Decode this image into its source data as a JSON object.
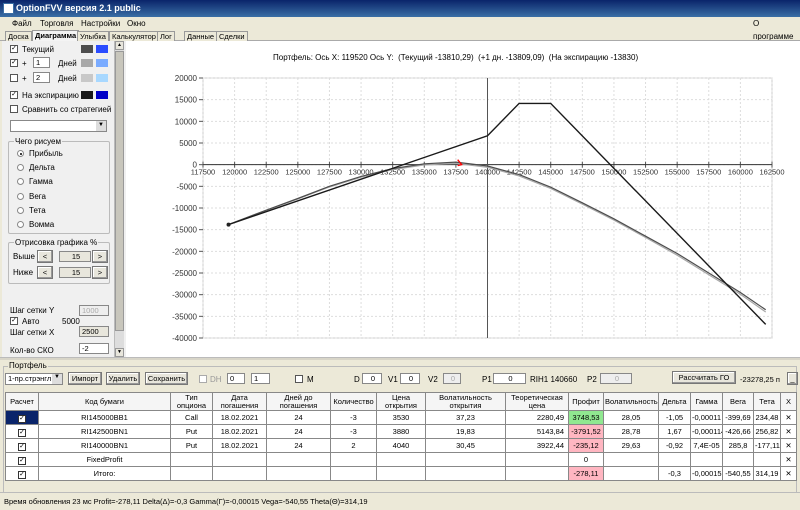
{
  "window": {
    "title": "OptionFVV версия 2.1 public"
  },
  "menu": {
    "items": [
      "Файл",
      "Торговля",
      "Настройки",
      "Окно"
    ],
    "about": "О программе"
  },
  "tabs": [
    "Доска",
    "Диаграмма",
    "Улыбка",
    "Калькулятор",
    "Лог",
    "Данные",
    "Сделки"
  ],
  "active_tab": "Диаграмма",
  "left": {
    "current_label": "Текущий",
    "current_checked": true,
    "current_colors": [
      "#4d4d4d",
      "#2a4cff"
    ],
    "plus_label": "+",
    "days_label": "Дней",
    "day1_value": "1",
    "day1_checked": true,
    "day1_colors": [
      "#a8a8a8",
      "#7aabff"
    ],
    "day2_value": "2",
    "day2_checked": false,
    "day2_colors": [
      "#c8c8c8",
      "#a8d8ff"
    ],
    "expiry_label": "На экспирацию",
    "expiry_checked": true,
    "expiry_colors": [
      "#1a1a1a",
      "#0000c8"
    ],
    "compare_label": "Сравнить со стратегией",
    "compare_checked": false,
    "what_group": "Чего рисуем",
    "what_options": [
      "Прибыль",
      "Дельта",
      "Гамма",
      "Вега",
      "Тета",
      "Вомма"
    ],
    "what_selected": "Прибыль",
    "draw_group": "Отрисовка графика %",
    "above_label": "Выше",
    "above_value": "15",
    "below_label": "Ниже",
    "below_value": "15",
    "prev": "<",
    "next": ">",
    "grid_y_label": "Шаг сетки Y",
    "grid_y_value": "1000",
    "auto_label": "Авто",
    "auto_checked": true,
    "auto_value": "5000",
    "grid_x_label": "Шаг сетки X",
    "grid_x_value": "2500",
    "sko_label": "Кол-во СКО",
    "sko_value": "-2"
  },
  "chart_header": "Портфель: Ось X: 119520 Ось Y:  (Текущий -13810,29)  (+1 дн. -13809,09)  (На экспирацию -13830)",
  "chart_data": {
    "type": "line",
    "xlim": [
      117500,
      162500
    ],
    "ylim": [
      -40000,
      20000
    ],
    "x_ticks": [
      117500,
      120000,
      122500,
      125000,
      127500,
      130000,
      132500,
      135000,
      137500,
      140000,
      142500,
      145000,
      147500,
      150000,
      152500,
      155000,
      157500,
      160000,
      162500
    ],
    "y_ticks": [
      20000,
      15000,
      10000,
      5000,
      0,
      -5000,
      -10000,
      -15000,
      -20000,
      -25000,
      -30000,
      -35000,
      -40000
    ],
    "grid": true,
    "cursor_x": 140000,
    "marker": {
      "x": 137800,
      "y": 0,
      "color": "#ff0000"
    },
    "series": [
      {
        "name": "На экспирацию",
        "color": "#1a1a1a",
        "points": [
          [
            119520,
            -13830
          ],
          [
            140000,
            6650
          ],
          [
            142500,
            14150
          ],
          [
            145000,
            14150
          ],
          [
            162000,
            -36850
          ]
        ]
      },
      {
        "name": "Текущий",
        "color": "#4d4d4d",
        "points": [
          [
            119520,
            -13810
          ],
          [
            122500,
            -10500
          ],
          [
            125000,
            -7800
          ],
          [
            127500,
            -5000
          ],
          [
            130000,
            -2700
          ],
          [
            132500,
            -900
          ],
          [
            135000,
            200
          ],
          [
            137500,
            600
          ],
          [
            140000,
            -300
          ],
          [
            142500,
            -2300
          ],
          [
            145000,
            -5200
          ],
          [
            147500,
            -8800
          ],
          [
            150000,
            -12500
          ],
          [
            152500,
            -16500
          ],
          [
            155000,
            -20500
          ],
          [
            157500,
            -25000
          ],
          [
            160000,
            -29500
          ],
          [
            162000,
            -33500
          ]
        ]
      },
      {
        "name": "+1 дн.",
        "color": "#a8a8a8",
        "points": [
          [
            119520,
            -13809
          ],
          [
            122500,
            -10550
          ],
          [
            125000,
            -7900
          ],
          [
            127500,
            -5150
          ],
          [
            130000,
            -2900
          ],
          [
            132500,
            -1150
          ],
          [
            135000,
            -50
          ],
          [
            137500,
            300
          ],
          [
            140000,
            -600
          ],
          [
            142500,
            -2600
          ],
          [
            145000,
            -5500
          ],
          [
            147500,
            -9100
          ],
          [
            150000,
            -12800
          ],
          [
            152500,
            -16800
          ],
          [
            155000,
            -20900
          ],
          [
            157500,
            -25400
          ],
          [
            160000,
            -29900
          ],
          [
            162000,
            -34000
          ]
        ]
      }
    ]
  },
  "portfolio": {
    "group_title": "Портфель",
    "strategy": "1-пр.стрэнгл",
    "import": "Импорт",
    "delete": "Удалить",
    "save": "Сохранить",
    "dh_label": "DH",
    "dh_checked": false,
    "spin1": "0",
    "spin2": "1",
    "m_label": "M",
    "m_checked": false,
    "d_label": "D",
    "d_value": "0",
    "v1_label": "V1",
    "v1_value": "0",
    "v2_label": "V2",
    "v2_value": "0",
    "p1_label": "P1",
    "p1_value": "0",
    "rih_label": "RIH1 140660",
    "p2_label": "P2",
    "p2_value": "0",
    "calc_go": "Рассчитать ГО",
    "go_value": "-23278,25 п",
    "min_btn": "_",
    "columns": [
      "Расчет",
      "Код бумаги",
      "Тип опциона",
      "Дата погашения",
      "Дней до погашения",
      "Количество",
      "Цена открытия",
      "Волатильность открытия",
      "Теоретическая цена",
      "Профит",
      "Волатильность",
      "Дельта",
      "Гамма",
      "Вега",
      "Тета",
      "X"
    ],
    "rows": [
      {
        "calc": true,
        "code": "RI145000BB1",
        "type": "Call",
        "date": "18.02.2021",
        "days": "24",
        "qty": "-3",
        "price": "3530",
        "vol_open": "37,23",
        "theo": "2280,49",
        "profit": "3748,53",
        "profit_sign": "pos",
        "vol": "28,05",
        "delta": "-1,05",
        "gamma": "-0,00011",
        "vega": "-399,69",
        "theta": "234,48",
        "x": "✕"
      },
      {
        "calc": true,
        "code": "RI142500BN1",
        "type": "Put",
        "date": "18.02.2021",
        "days": "24",
        "qty": "-3",
        "price": "3880",
        "vol_open": "19,83",
        "theo": "5143,84",
        "profit": "-3791,52",
        "profit_sign": "neg",
        "vol": "28,78",
        "delta": "1,67",
        "gamma": "-0,000114",
        "vega": "-426,66",
        "theta": "256,82",
        "x": "✕"
      },
      {
        "calc": true,
        "code": "RI140000BN1",
        "type": "Put",
        "date": "18.02.2021",
        "days": "24",
        "qty": "2",
        "price": "4040",
        "vol_open": "30,45",
        "theo": "3922,44",
        "profit": "-235,12",
        "profit_sign": "neg",
        "vol": "29,63",
        "delta": "-0,92",
        "gamma": "7,4E-05",
        "vega": "285,8",
        "theta": "-177,11",
        "x": "✕"
      },
      {
        "calc": true,
        "code": "FixedProfit",
        "type": "",
        "date": "",
        "days": "",
        "qty": "",
        "price": "",
        "vol_open": "",
        "theo": "",
        "profit": "0",
        "profit_sign": "",
        "vol": "",
        "delta": "",
        "gamma": "",
        "vega": "",
        "theta": "",
        "x": "✕"
      },
      {
        "calc": true,
        "code": "Итого:",
        "type": "",
        "date": "",
        "days": "",
        "qty": "",
        "price": "",
        "vol_open": "",
        "theo": "",
        "profit": "-278,11",
        "profit_sign": "neg",
        "vol": "",
        "delta": "-0,3",
        "gamma": "-0,00015",
        "vega": "-540,55",
        "theta": "314,19",
        "x": "✕"
      }
    ]
  },
  "status": "Время обновления 23 мс  Profit=-278,11 Delta(Δ)=-0,3 Gamma(Γ)=-0,00015 Vega=-540,55 Theta(Θ)=314,19"
}
